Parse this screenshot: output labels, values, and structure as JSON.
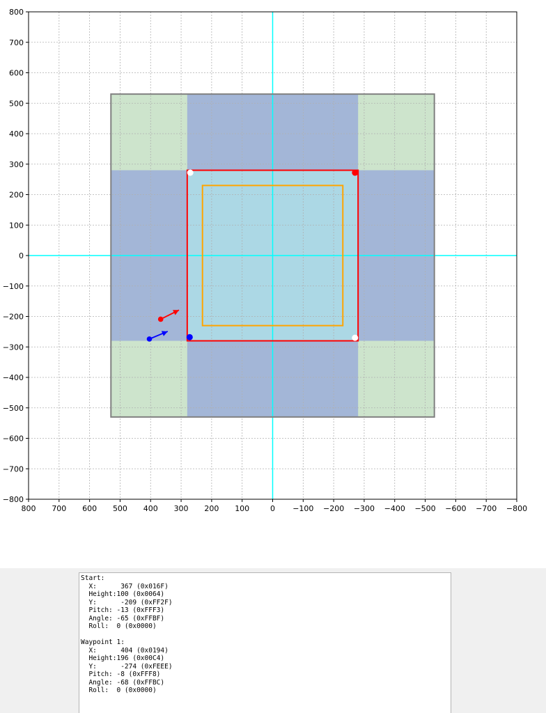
{
  "chart_data": {
    "type": "scatter",
    "xlim": [
      800,
      -800
    ],
    "ylim": [
      -800,
      800
    ],
    "x_reversed": true,
    "xticks": [
      800,
      700,
      600,
      500,
      400,
      300,
      200,
      100,
      0,
      -100,
      -200,
      -300,
      -400,
      -500,
      -600,
      -700,
      -800
    ],
    "yticks": [
      800,
      700,
      600,
      500,
      400,
      300,
      200,
      100,
      0,
      -100,
      -200,
      -300,
      -400,
      -500,
      -600,
      -700,
      -800
    ],
    "xtick_labels": [
      "800",
      "700",
      "600",
      "500",
      "400",
      "300",
      "200",
      "100",
      "0",
      "−100",
      "−200",
      "−300",
      "−400",
      "−500",
      "−600",
      "−700",
      "−800"
    ],
    "ytick_labels": [
      "800",
      "700",
      "600",
      "500",
      "400",
      "300",
      "200",
      "100",
      "0",
      "−100",
      "−200",
      "−300",
      "−400",
      "−500",
      "−600",
      "−700",
      "−800"
    ],
    "grid": true,
    "axis_lines": {
      "x0": 0,
      "y0": 0,
      "color": "#00ffff"
    },
    "regions": [
      {
        "name": "outer-area",
        "x": [
          -530,
          530
        ],
        "y": [
          -530,
          530
        ],
        "color": "#cde4cc"
      },
      {
        "name": "horizontal-band",
        "x": [
          -530,
          530
        ],
        "y": [
          -280,
          280
        ],
        "color": "#a3b6d7"
      },
      {
        "name": "vertical-band",
        "x": [
          -280,
          280
        ],
        "y": [
          -530,
          530
        ],
        "color": "#a3b6d7"
      },
      {
        "name": "center-area",
        "x": [
          -280,
          280
        ],
        "y": [
          -280,
          280
        ],
        "color": "#acd8e5"
      }
    ],
    "rectangles": [
      {
        "name": "outer-boundary",
        "x": [
          -530,
          530
        ],
        "y": [
          -530,
          530
        ],
        "color": "#808080"
      },
      {
        "name": "red-boundary",
        "x": [
          -280,
          280
        ],
        "y": [
          -280,
          280
        ],
        "color": "#ff0000"
      },
      {
        "name": "orange-boundary",
        "x": [
          -230,
          230
        ],
        "y": [
          -230,
          230
        ],
        "color": "#ffa500"
      }
    ],
    "markers": [
      {
        "name": "corner-top-left",
        "x": 270,
        "y": 272,
        "color": "#ffffff"
      },
      {
        "name": "corner-top-right",
        "x": -270,
        "y": 272,
        "color": "#ff0000"
      },
      {
        "name": "corner-bottom-right",
        "x": -270,
        "y": -270,
        "color": "#ffffff"
      },
      {
        "name": "corner-bottom-left",
        "x": 272,
        "y": -268,
        "color": "#0000ff"
      }
    ],
    "arrows": [
      {
        "name": "start",
        "x": 367,
        "y": -209,
        "dx": -60,
        "dy": 30,
        "color": "#ff0000"
      },
      {
        "name": "waypoint-1",
        "x": 404,
        "y": -274,
        "dx": -60,
        "dy": 25,
        "color": "#0000ff"
      }
    ]
  },
  "info_panel": {
    "lines": [
      "Start:",
      "  X:      367 (0x016F)",
      "  Height:100 (0x0064)",
      "  Y:      -209 (0xFF2F)",
      "  Pitch: -13 (0xFFF3)",
      "  Angle: -65 (0xFFBF)",
      "  Roll:  0 (0x0000)",
      "",
      "Waypoint 1:",
      "  X:      404 (0x0194)",
      "  Height:196 (0x00C4)",
      "  Y:      -274 (0xFEEE)",
      "  Pitch: -8 (0xFFF8)",
      "  Angle: -68 (0xFFBC)",
      "  Roll:  0 (0x0000)"
    ]
  }
}
